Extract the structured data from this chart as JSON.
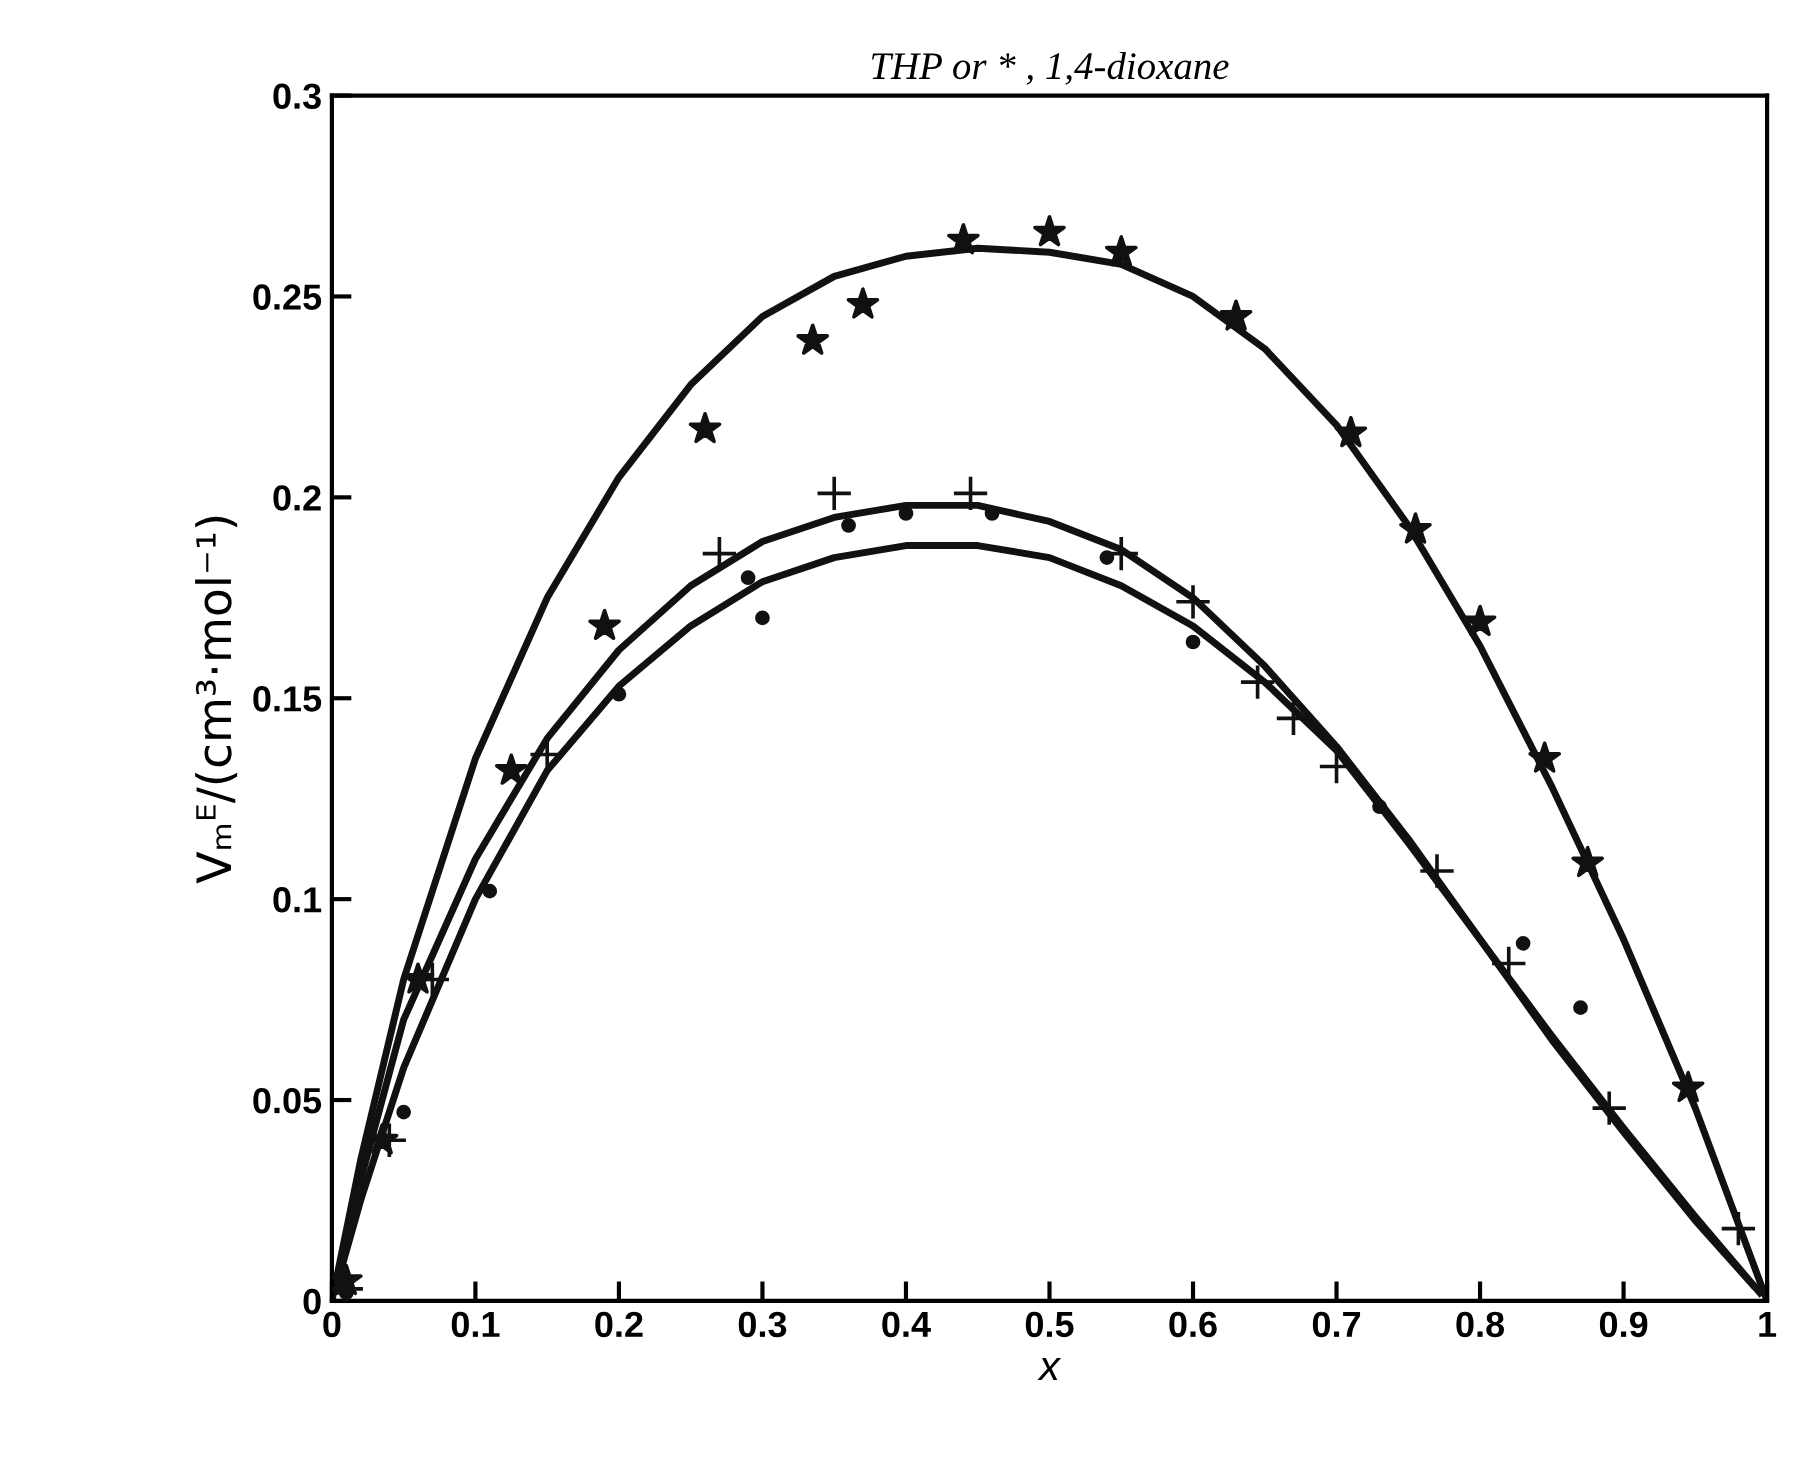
{
  "chart_data": {
    "type": "scatter",
    "title": "THP or * , 1,4-dioxane",
    "xlabel": "x",
    "ylabel": "Vₘᴱ/(cm³·mol⁻¹)",
    "xlim": [
      0,
      1
    ],
    "ylim": [
      0,
      0.3
    ],
    "xticks": [
      0,
      0.1,
      0.2,
      0.3,
      0.4,
      0.5,
      0.6,
      0.7,
      0.8,
      0.9,
      1
    ],
    "yticks": [
      0,
      0.05,
      0.1,
      0.15,
      0.2,
      0.25,
      0.3
    ],
    "grid": false,
    "legend": false,
    "series": [
      {
        "marker": "star",
        "color": "#111111",
        "x": [
          0.01,
          0.035,
          0.06,
          0.125,
          0.19,
          0.26,
          0.335,
          0.37,
          0.44,
          0.5,
          0.55,
          0.63,
          0.71,
          0.755,
          0.8,
          0.845,
          0.875,
          0.945
        ],
        "values": [
          0.005,
          0.04,
          0.08,
          0.132,
          0.168,
          0.217,
          0.239,
          0.248,
          0.264,
          0.266,
          0.261,
          0.245,
          0.216,
          0.192,
          0.169,
          0.135,
          0.109,
          0.053
        ]
      },
      {
        "marker": "cross",
        "color": "#111111",
        "x": [
          0.01,
          0.04,
          0.07,
          0.15,
          0.27,
          0.35,
          0.445,
          0.55,
          0.6,
          0.645,
          0.67,
          0.7,
          0.77,
          0.82,
          0.89,
          0.98
        ],
        "values": [
          0.003,
          0.04,
          0.08,
          0.136,
          0.186,
          0.201,
          0.201,
          0.186,
          0.174,
          0.154,
          0.145,
          0.133,
          0.107,
          0.084,
          0.048,
          0.018
        ]
      },
      {
        "marker": "circle",
        "color": "#111111",
        "x": [
          0.01,
          0.05,
          0.11,
          0.2,
          0.29,
          0.3,
          0.36,
          0.4,
          0.46,
          0.54,
          0.6,
          0.73,
          0.83,
          0.87
        ],
        "values": [
          0.002,
          0.047,
          0.102,
          0.151,
          0.18,
          0.17,
          0.193,
          0.196,
          0.196,
          0.185,
          0.164,
          0.123,
          0.089,
          0.073
        ]
      },
      {
        "type": "line",
        "marker": "none",
        "line_style": "solid",
        "color": "#111111",
        "x": [
          0,
          0.02,
          0.05,
          0.1,
          0.15,
          0.2,
          0.25,
          0.3,
          0.35,
          0.4,
          0.45,
          0.5,
          0.55,
          0.6,
          0.65,
          0.7,
          0.75,
          0.8,
          0.85,
          0.9,
          0.95,
          1
        ],
        "values": [
          0,
          0.035,
          0.08,
          0.135,
          0.175,
          0.205,
          0.228,
          0.245,
          0.255,
          0.26,
          0.262,
          0.261,
          0.258,
          0.25,
          0.237,
          0.218,
          0.193,
          0.163,
          0.128,
          0.09,
          0.048,
          0
        ]
      },
      {
        "type": "line",
        "marker": "none",
        "line_style": "solid",
        "color": "#111111",
        "x": [
          0.01,
          0.02,
          0.05,
          0.1,
          0.15,
          0.2,
          0.25,
          0.3,
          0.35,
          0.4,
          0.45,
          0.5,
          0.55,
          0.6,
          0.65,
          0.7,
          0.75,
          0.8,
          0.85,
          0.9,
          0.95,
          0.99
        ],
        "values": [
          0.015,
          0.03,
          0.07,
          0.11,
          0.14,
          0.162,
          0.178,
          0.189,
          0.195,
          0.198,
          0.198,
          0.194,
          0.187,
          0.175,
          0.158,
          0.138,
          0.115,
          0.09,
          0.065,
          0.042,
          0.02,
          0.004
        ]
      },
      {
        "type": "line",
        "marker": "none",
        "line_style": "solid",
        "color": "#111111",
        "x": [
          0.005,
          0.02,
          0.05,
          0.1,
          0.15,
          0.2,
          0.25,
          0.3,
          0.35,
          0.4,
          0.45,
          0.5,
          0.55,
          0.6,
          0.65,
          0.7,
          0.75,
          0.8,
          0.85,
          0.9,
          0.95,
          0.995
        ],
        "values": [
          0.006,
          0.025,
          0.058,
          0.1,
          0.132,
          0.153,
          0.168,
          0.179,
          0.185,
          0.188,
          0.188,
          0.185,
          0.178,
          0.168,
          0.154,
          0.137,
          0.114,
          0.09,
          0.066,
          0.043,
          0.021,
          0.002
        ]
      }
    ]
  }
}
